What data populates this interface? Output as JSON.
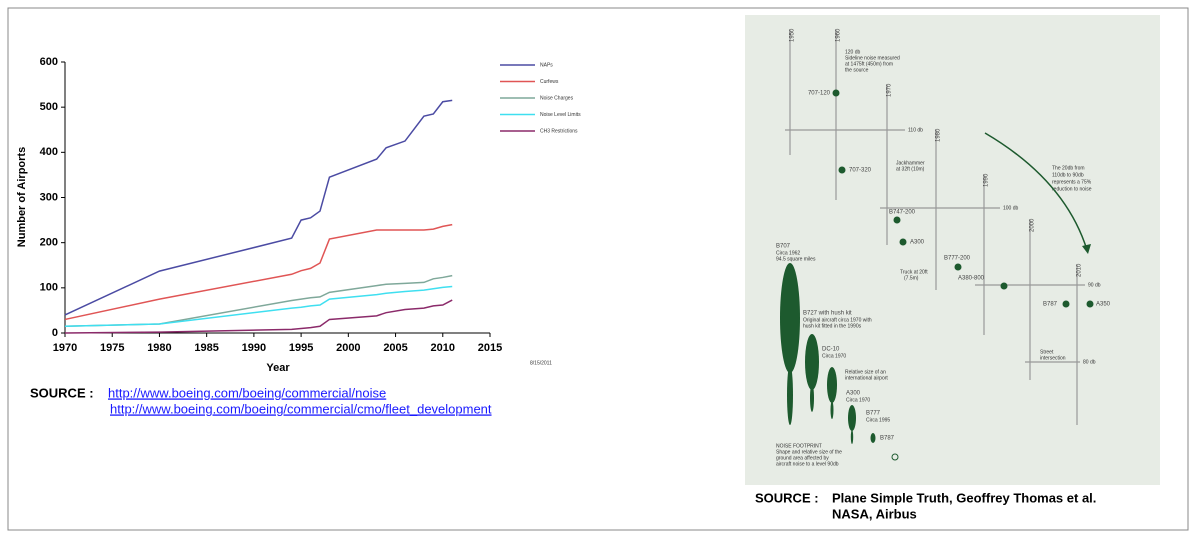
{
  "chart_data": {
    "type": "line",
    "ylabel": "Number of Airports",
    "xlabel": "Year",
    "note": "8/15/2011",
    "x": [
      1970,
      1980,
      1994,
      1995,
      1996,
      1997,
      1998,
      2003,
      2004,
      2006,
      2008,
      2009,
      2010,
      2011
    ],
    "series": [
      {
        "name": "NAPs",
        "color": "#4b4ba3",
        "values": [
          40,
          137,
          210,
          250,
          255,
          270,
          345,
          385,
          410,
          425,
          480,
          485,
          512,
          515
        ]
      },
      {
        "name": "Curfews",
        "color": "#e05555",
        "values": [
          30,
          75,
          130,
          138,
          143,
          155,
          208,
          228,
          228,
          228,
          228,
          230,
          236,
          240
        ]
      },
      {
        "name": "Noise Charges",
        "color": "#7fa89a",
        "values": [
          15,
          20,
          72,
          75,
          78,
          80,
          90,
          105,
          108,
          110,
          112,
          120,
          123,
          127
        ]
      },
      {
        "name": "Noise Level Limits",
        "color": "#3fdff0",
        "values": [
          15,
          20,
          55,
          57,
          60,
          62,
          75,
          85,
          88,
          92,
          95,
          98,
          101,
          103
        ]
      },
      {
        "name": "CH3 Restrictions",
        "color": "#8b2a6a",
        "values": [
          0,
          2,
          8,
          10,
          12,
          15,
          30,
          38,
          45,
          52,
          55,
          60,
          62,
          73
        ]
      }
    ],
    "xlim": [
      1970,
      2015
    ],
    "xticks": [
      1970,
      1975,
      1980,
      1985,
      1990,
      1995,
      2000,
      2005,
      2010,
      2015
    ],
    "ylim": [
      0,
      600
    ],
    "yticks": [
      0,
      100,
      200,
      300,
      400,
      500,
      600
    ],
    "legend": "right",
    "grid": false
  },
  "left_source": {
    "label": "SOURCE :",
    "links": [
      "http://www.boeing.com/boeing/commercial/noise",
      "http://www.boeing.com/boeing/commercial/cmo/fleet_development"
    ]
  },
  "diagram": {
    "decades": [
      "1950",
      "1960",
      "1970",
      "1980",
      "1990",
      "2000",
      "2010"
    ],
    "levels": [
      "110 db",
      "100 db",
      "90 db",
      "80 db"
    ],
    "aircraft": [
      "707-120",
      "707-320",
      "B747-200",
      "A300",
      "B777-200",
      "A380-800",
      "B787",
      "A350"
    ],
    "notes": [
      "120 db",
      "Sideline noise measured",
      "at 1475ft (450m) from",
      "the source",
      "Jackhammer",
      "at 32ft (10m)",
      "Truck at 20ft",
      "(7.5m)",
      "Street",
      "intersection",
      "The 20db from",
      "110db to 90db",
      "represents a 75%",
      "reduction to noise"
    ],
    "footprints": [
      "B707",
      "Circa 1962",
      "94.5 square miles",
      "B727 with hush kit",
      "Original aircraft circa 1970 with",
      "hush kit fitted in the 1990s",
      "DC-10",
      "Circa 1970",
      "Relative size of an",
      "international airport",
      "A300",
      "Circa 1970",
      "B777",
      "Circa 1995",
      "B787",
      "NOISE FOOTPRINT",
      "Shape and relative size of the",
      "ground area affected by",
      "aircraft noise to a level 90db"
    ]
  },
  "right_source": [
    "SOURCE :",
    "Plane Simple Truth, Geoffrey Thomas et al.",
    "NASA, Airbus"
  ]
}
